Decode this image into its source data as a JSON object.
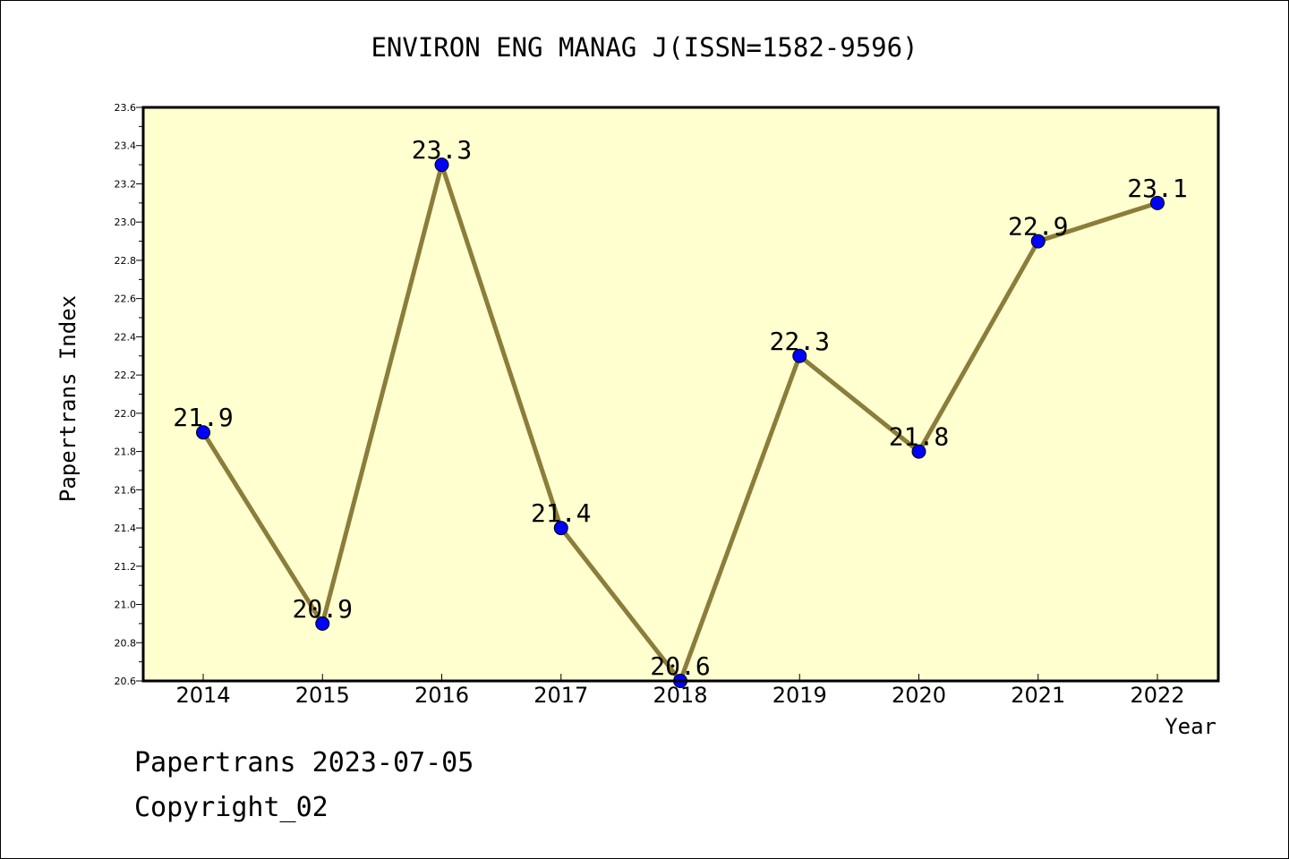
{
  "chart_data": {
    "type": "line",
    "title": "ENVIRON ENG MANAG J(ISSN=1582-9596)",
    "xlabel": "Year",
    "ylabel": "Papertrans Index",
    "categories": [
      "2014",
      "2015",
      "2016",
      "2017",
      "2018",
      "2019",
      "2020",
      "2021",
      "2022"
    ],
    "series": [
      {
        "values": [
          21.9,
          20.9,
          23.3,
          21.4,
          20.6,
          22.3,
          21.8,
          22.9,
          23.1
        ],
        "data_labels": [
          "21.9",
          "20.9",
          "23.3",
          "21.4",
          "20.6",
          "22.3",
          "21.8",
          "22.9",
          "23.1"
        ]
      }
    ],
    "ylim": [
      20.6,
      23.6
    ],
    "y_ticks": [
      "20.6",
      "20.8",
      "21.0",
      "21.2",
      "21.4",
      "21.6",
      "21.8",
      "22.0",
      "22.2",
      "22.4",
      "22.6",
      "22.8",
      "23.0",
      "23.2",
      "23.4",
      "23.6"
    ],
    "grid": false,
    "legend": "none",
    "colors": {
      "plot_background": "#ffffd0",
      "line": "#8b7d3a",
      "marker": "#0000ff",
      "axis": "#000000"
    }
  },
  "footer": {
    "date_text": "Papertrans 2023-07-05",
    "copyright_text": "Copyright_02"
  }
}
